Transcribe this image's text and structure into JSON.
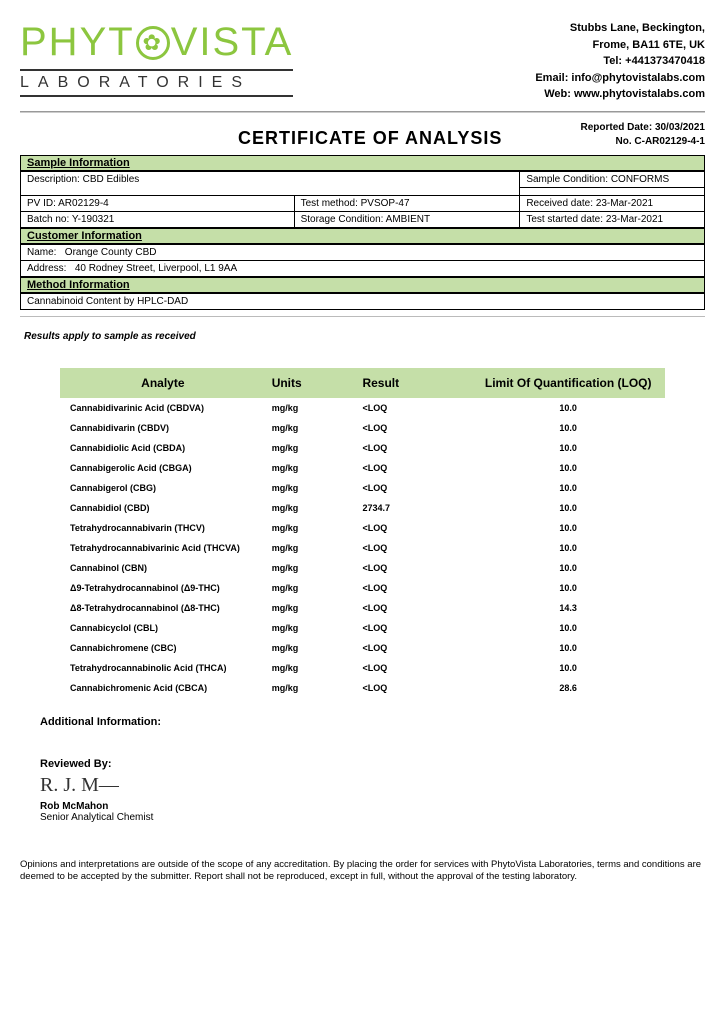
{
  "company": {
    "logo_main": "PHYTOVISTA",
    "logo_sub": "LABORATORIES"
  },
  "contact": {
    "line1": "Stubbs Lane, Beckington,",
    "line2": "Frome, BA11 6TE, UK",
    "tel": "Tel: +441373470418",
    "email": "Email: info@phytovistalabs.com",
    "web": "Web: www.phytovistalabs.com"
  },
  "report": {
    "title": "CERTIFICATE OF ANALYSIS",
    "reported_date_label": "Reported Date:",
    "reported_date": "30/03/2021",
    "number_label": "No.",
    "number": "C-AR02129-4-1"
  },
  "sample": {
    "section_label": "Sample Information",
    "description_label": "Description:",
    "description": "CBD Edibles",
    "condition_label": "Sample Condition:",
    "condition": "CONFORMS",
    "pvid_label": "PV ID:",
    "pvid": "AR02129-4",
    "test_method_label": "Test method:",
    "test_method": "PVSOP-47",
    "received_label": "Received date:",
    "received": "23-Mar-2021",
    "batch_label": "Batch no:",
    "batch": "Y-190321",
    "storage_label": "Storage Condition:",
    "storage": "AMBIENT",
    "started_label": "Test started date:",
    "started": "23-Mar-2021"
  },
  "customer": {
    "section_label": "Customer Information",
    "name_label": "Name:",
    "name": "Orange County CBD",
    "address_label": "Address:",
    "address": "40 Rodney Street, Liverpool, L1 9AA"
  },
  "method": {
    "section_label": "Method Information",
    "text": "Cannabinoid Content by HPLC-DAD"
  },
  "results_note": "Results apply to sample as received",
  "table": {
    "headers": {
      "analyte": "Analyte",
      "units": "Units",
      "result": "Result",
      "loq": "Limit Of Quantification (LOQ)"
    },
    "header_bg": "#c5dfa8",
    "rows": [
      {
        "analyte": "Cannabidivarinic Acid (CBDVA)",
        "units": "mg/kg",
        "result": "<LOQ",
        "loq": "10.0"
      },
      {
        "analyte": "Cannabidivarin (CBDV)",
        "units": "mg/kg",
        "result": "<LOQ",
        "loq": "10.0"
      },
      {
        "analyte": "Cannabidiolic Acid (CBDA)",
        "units": "mg/kg",
        "result": "<LOQ",
        "loq": "10.0"
      },
      {
        "analyte": "Cannabigerolic Acid (CBGA)",
        "units": "mg/kg",
        "result": "<LOQ",
        "loq": "10.0"
      },
      {
        "analyte": "Cannabigerol (CBG)",
        "units": "mg/kg",
        "result": "<LOQ",
        "loq": "10.0"
      },
      {
        "analyte": "Cannabidiol (CBD)",
        "units": "mg/kg",
        "result": "2734.7",
        "loq": "10.0"
      },
      {
        "analyte": "Tetrahydrocannabivarin (THCV)",
        "units": "mg/kg",
        "result": "<LOQ",
        "loq": "10.0"
      },
      {
        "analyte": "Tetrahydrocannabivarinic Acid (THCVA)",
        "units": "mg/kg",
        "result": "<LOQ",
        "loq": "10.0"
      },
      {
        "analyte": "Cannabinol (CBN)",
        "units": "mg/kg",
        "result": "<LOQ",
        "loq": "10.0"
      },
      {
        "analyte": "Δ9-Tetrahydrocannabinol (Δ9-THC)",
        "units": "mg/kg",
        "result": "<LOQ",
        "loq": "10.0"
      },
      {
        "analyte": "Δ8-Tetrahydrocannabinol (Δ8-THC)",
        "units": "mg/kg",
        "result": "<LOQ",
        "loq": "14.3"
      },
      {
        "analyte": "Cannabicyclol (CBL)",
        "units": "mg/kg",
        "result": "<LOQ",
        "loq": "10.0"
      },
      {
        "analyte": "Cannabichromene (CBC)",
        "units": "mg/kg",
        "result": "<LOQ",
        "loq": "10.0"
      },
      {
        "analyte": "Tetrahydrocannabinolic Acid (THCA)",
        "units": "mg/kg",
        "result": "<LOQ",
        "loq": "10.0"
      },
      {
        "analyte": "Cannabichromenic Acid (CBCA)",
        "units": "mg/kg",
        "result": "<LOQ",
        "loq": "28.6"
      }
    ]
  },
  "additional_label": "Additional Information:",
  "review": {
    "label": "Reviewed By:",
    "signature": "R. J. M—",
    "name": "Rob McMahon",
    "title": "Senior Analytical Chemist"
  },
  "disclaimer": "Opinions and interpretations are outside of the scope of any accreditation. By placing the order for services with PhytoVista Laboratories, terms and conditions are deemed to be accepted by the submitter. Report shall not be reproduced, except in full, without the approval of the testing laboratory."
}
